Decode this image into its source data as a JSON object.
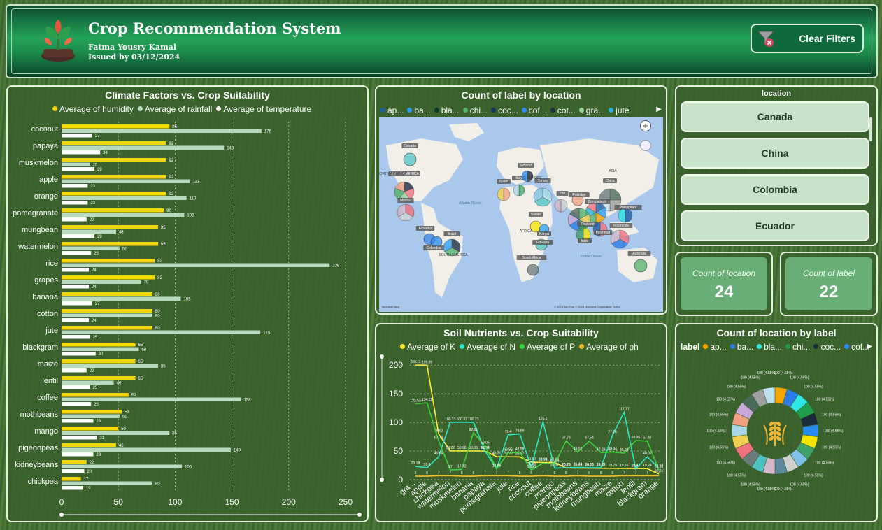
{
  "header": {
    "title": "Crop Recommendation System",
    "author": "Fatma Yousry Kamal",
    "issued": "Issued by 03/12/2024",
    "clear_filters_label": "Clear Filters"
  },
  "climate": {
    "title": "Climate Factors vs. Crop Suitability",
    "legend": [
      "Average of humidity",
      "Average of rainfall",
      "Average of temperature"
    ],
    "colors": [
      "#f2d600",
      "#b8d8c0",
      "#ffffff"
    ],
    "chart_data": {
      "type": "bar",
      "categories": [
        "coconut",
        "papaya",
        "muskmelon",
        "apple",
        "orange",
        "pomegranate",
        "mungbean",
        "watermelon",
        "rice",
        "grapes",
        "banana",
        "cotton",
        "jute",
        "blackgram",
        "maize",
        "lentil",
        "coffee",
        "mothbeans",
        "mango",
        "pigeonpeas",
        "kidneybeans",
        "chickpea"
      ],
      "series": [
        {
          "name": "Average of humidity",
          "values": [
            95,
            92,
            92,
            92,
            92,
            90,
            85,
            85,
            82,
            82,
            80,
            80,
            80,
            65,
            65,
            65,
            59,
            53,
            50,
            48,
            22,
            17
          ]
        },
        {
          "name": "Average of rainfall",
          "values": [
            176,
            143,
            25,
            113,
            110,
            108,
            48,
            51,
            236,
            70,
            105,
            80,
            175,
            68,
            85,
            46,
            158,
            51,
            95,
            149,
            106,
            80
          ]
        },
        {
          "name": "Average of temperature",
          "values": [
            27,
            34,
            29,
            23,
            23,
            22,
            29,
            26,
            24,
            24,
            27,
            24,
            25,
            30,
            22,
            25,
            26,
            28,
            31,
            28,
            20,
            19
          ]
        }
      ],
      "xticks": [
        "0",
        "50",
        "100",
        "150",
        "200",
        "250"
      ],
      "xlim": [
        0,
        250
      ]
    }
  },
  "map": {
    "title": "Count of label by location",
    "legend": [
      "ap...",
      "ba...",
      "bla...",
      "chi...",
      "coc...",
      "cof...",
      "cot...",
      "gra...",
      "jute"
    ],
    "legend_colors": [
      "#1f5fa8",
      "#2a9df4",
      "#0b3b2a",
      "#53b26a",
      "#14355e",
      "#2c8cf0",
      "#1b2f45",
      "#9bd39b",
      "#27b3d9"
    ],
    "countries": [
      "Canada",
      "NORTH AMERICA",
      "Mexico",
      "Spain",
      "Italy",
      "Poland",
      "EUROPE",
      "Turkey",
      "Iran",
      "Pakistan",
      "ASIA",
      "China",
      "Bangladesh",
      "Thailand",
      "Myanmar",
      "India",
      "Philippines",
      "Indonesia",
      "Sudan",
      "AFRICA",
      "Kenya",
      "Ethiopia",
      "Ecuador",
      "Brazil",
      "Colombia",
      "SOUTH AMERICA",
      "South Africa",
      "Australia",
      "Atlantic Ocean",
      "Indian Ocean"
    ],
    "footer": "© 2024 TomTom © 2024 Microsoft Corporation  Terms",
    "brand": "Microsoft Bing"
  },
  "slicer": {
    "title": "location",
    "items": [
      "Canada",
      "China",
      "Colombia",
      "Ecuador"
    ]
  },
  "kpis": [
    {
      "label": "Count of location",
      "value": "24"
    },
    {
      "label": "Count of label",
      "value": "22"
    }
  ],
  "soil": {
    "title": "Soil Nutrients vs. Crop Suitability",
    "legend": [
      "Average of K",
      "Average of N",
      "Average of P",
      "Average of ph"
    ],
    "colors": [
      "#ffeb3b",
      "#2ee6c7",
      "#3cd23c",
      "#f2c12e"
    ],
    "chart_data": {
      "type": "line",
      "x": [
        "gra...",
        "apple",
        "chickpea",
        "watermelon",
        "muskmelon",
        "banana",
        "papaya",
        "pomegranate",
        "jute",
        "rice",
        "coconut",
        "coffee",
        "mango",
        "pigeonpeas",
        "mothbeans",
        "kidneybeans",
        "mungbean",
        "maize",
        "cotton",
        "lentil",
        "blackgram",
        "orange"
      ],
      "series": [
        {
          "name": "Average of K",
          "values": [
            200.11,
            199.89,
            79.92,
            50.22,
            50.08,
            50.05,
            50.04,
            40.21,
            39.99,
            39.87,
            30.59,
            29.94,
            29.92,
            20.29,
            20.23,
            20.05,
            19.87,
            19.79,
            19.56,
            19.41,
            19.24,
            10.01
          ]
        },
        {
          "name": "Average of N",
          "values": [
            23.18,
            20.8,
            40.09,
            100.23,
            100.32,
            100.23,
            49.88,
            18.87,
            78.4,
            79.89,
            21.98,
            101.2,
            20.07,
            20.73,
            21.44,
            20.75,
            20.99,
            77.76,
            117.77,
            18.77,
            40.02,
            19.58
          ]
        },
        {
          "name": "Average of P",
          "values": [
            132.53,
            134.22,
            67.79,
            17.0,
            17.72,
            82.01,
            59.05,
            18.75,
            46.86,
            47.58,
            16.93,
            28.74,
            27.18,
            67.73,
            48.01,
            67.54,
            47.28,
            48.44,
            46.24,
            68.36,
            67.47,
            16.55
          ]
        },
        {
          "name": "Average of ph",
          "values": [
            6,
            6,
            7,
            7,
            6,
            6,
            7,
            7,
            7,
            6,
            6,
            7,
            6,
            6,
            7,
            6,
            6,
            6,
            7,
            7,
            7,
            7
          ]
        }
      ],
      "yticks": [
        "0",
        "50",
        "100",
        "150",
        "200"
      ],
      "ylim": [
        0,
        210
      ]
    }
  },
  "donut": {
    "title": "Count of location by label",
    "legend_label": "label",
    "legend": [
      "ap...",
      "ba...",
      "bla...",
      "chi...",
      "coc...",
      "cof..."
    ],
    "legend_colors": [
      "#f7a600",
      "#2b7de9",
      "#2ee6e6",
      "#1f9e4a",
      "#1a2b3c",
      "#2b8cf0"
    ],
    "chart_data": {
      "type": "pie",
      "slice_label": "100 (4.55%)",
      "values": [
        100,
        100,
        100,
        100,
        100,
        100,
        100,
        100,
        100,
        100,
        100,
        100,
        100,
        100,
        100,
        100,
        100,
        100,
        100,
        100,
        100,
        100
      ],
      "colors": [
        "#f7a600",
        "#2b7de9",
        "#2ee6e6",
        "#1f9e4a",
        "#1a2b3c",
        "#2b8cf0",
        "#f5e600",
        "#3fa06a",
        "#7ec0e8",
        "#cfcfcf",
        "#5a8a9c",
        "#d4b8c8",
        "#4fc3c3",
        "#6b7b7b",
        "#f07080",
        "#f0d050",
        "#a6d8e8",
        "#f0a080",
        "#c8a8d8",
        "#4a6a5a",
        "#a0a0a0",
        "#c0e0f0"
      ]
    }
  }
}
